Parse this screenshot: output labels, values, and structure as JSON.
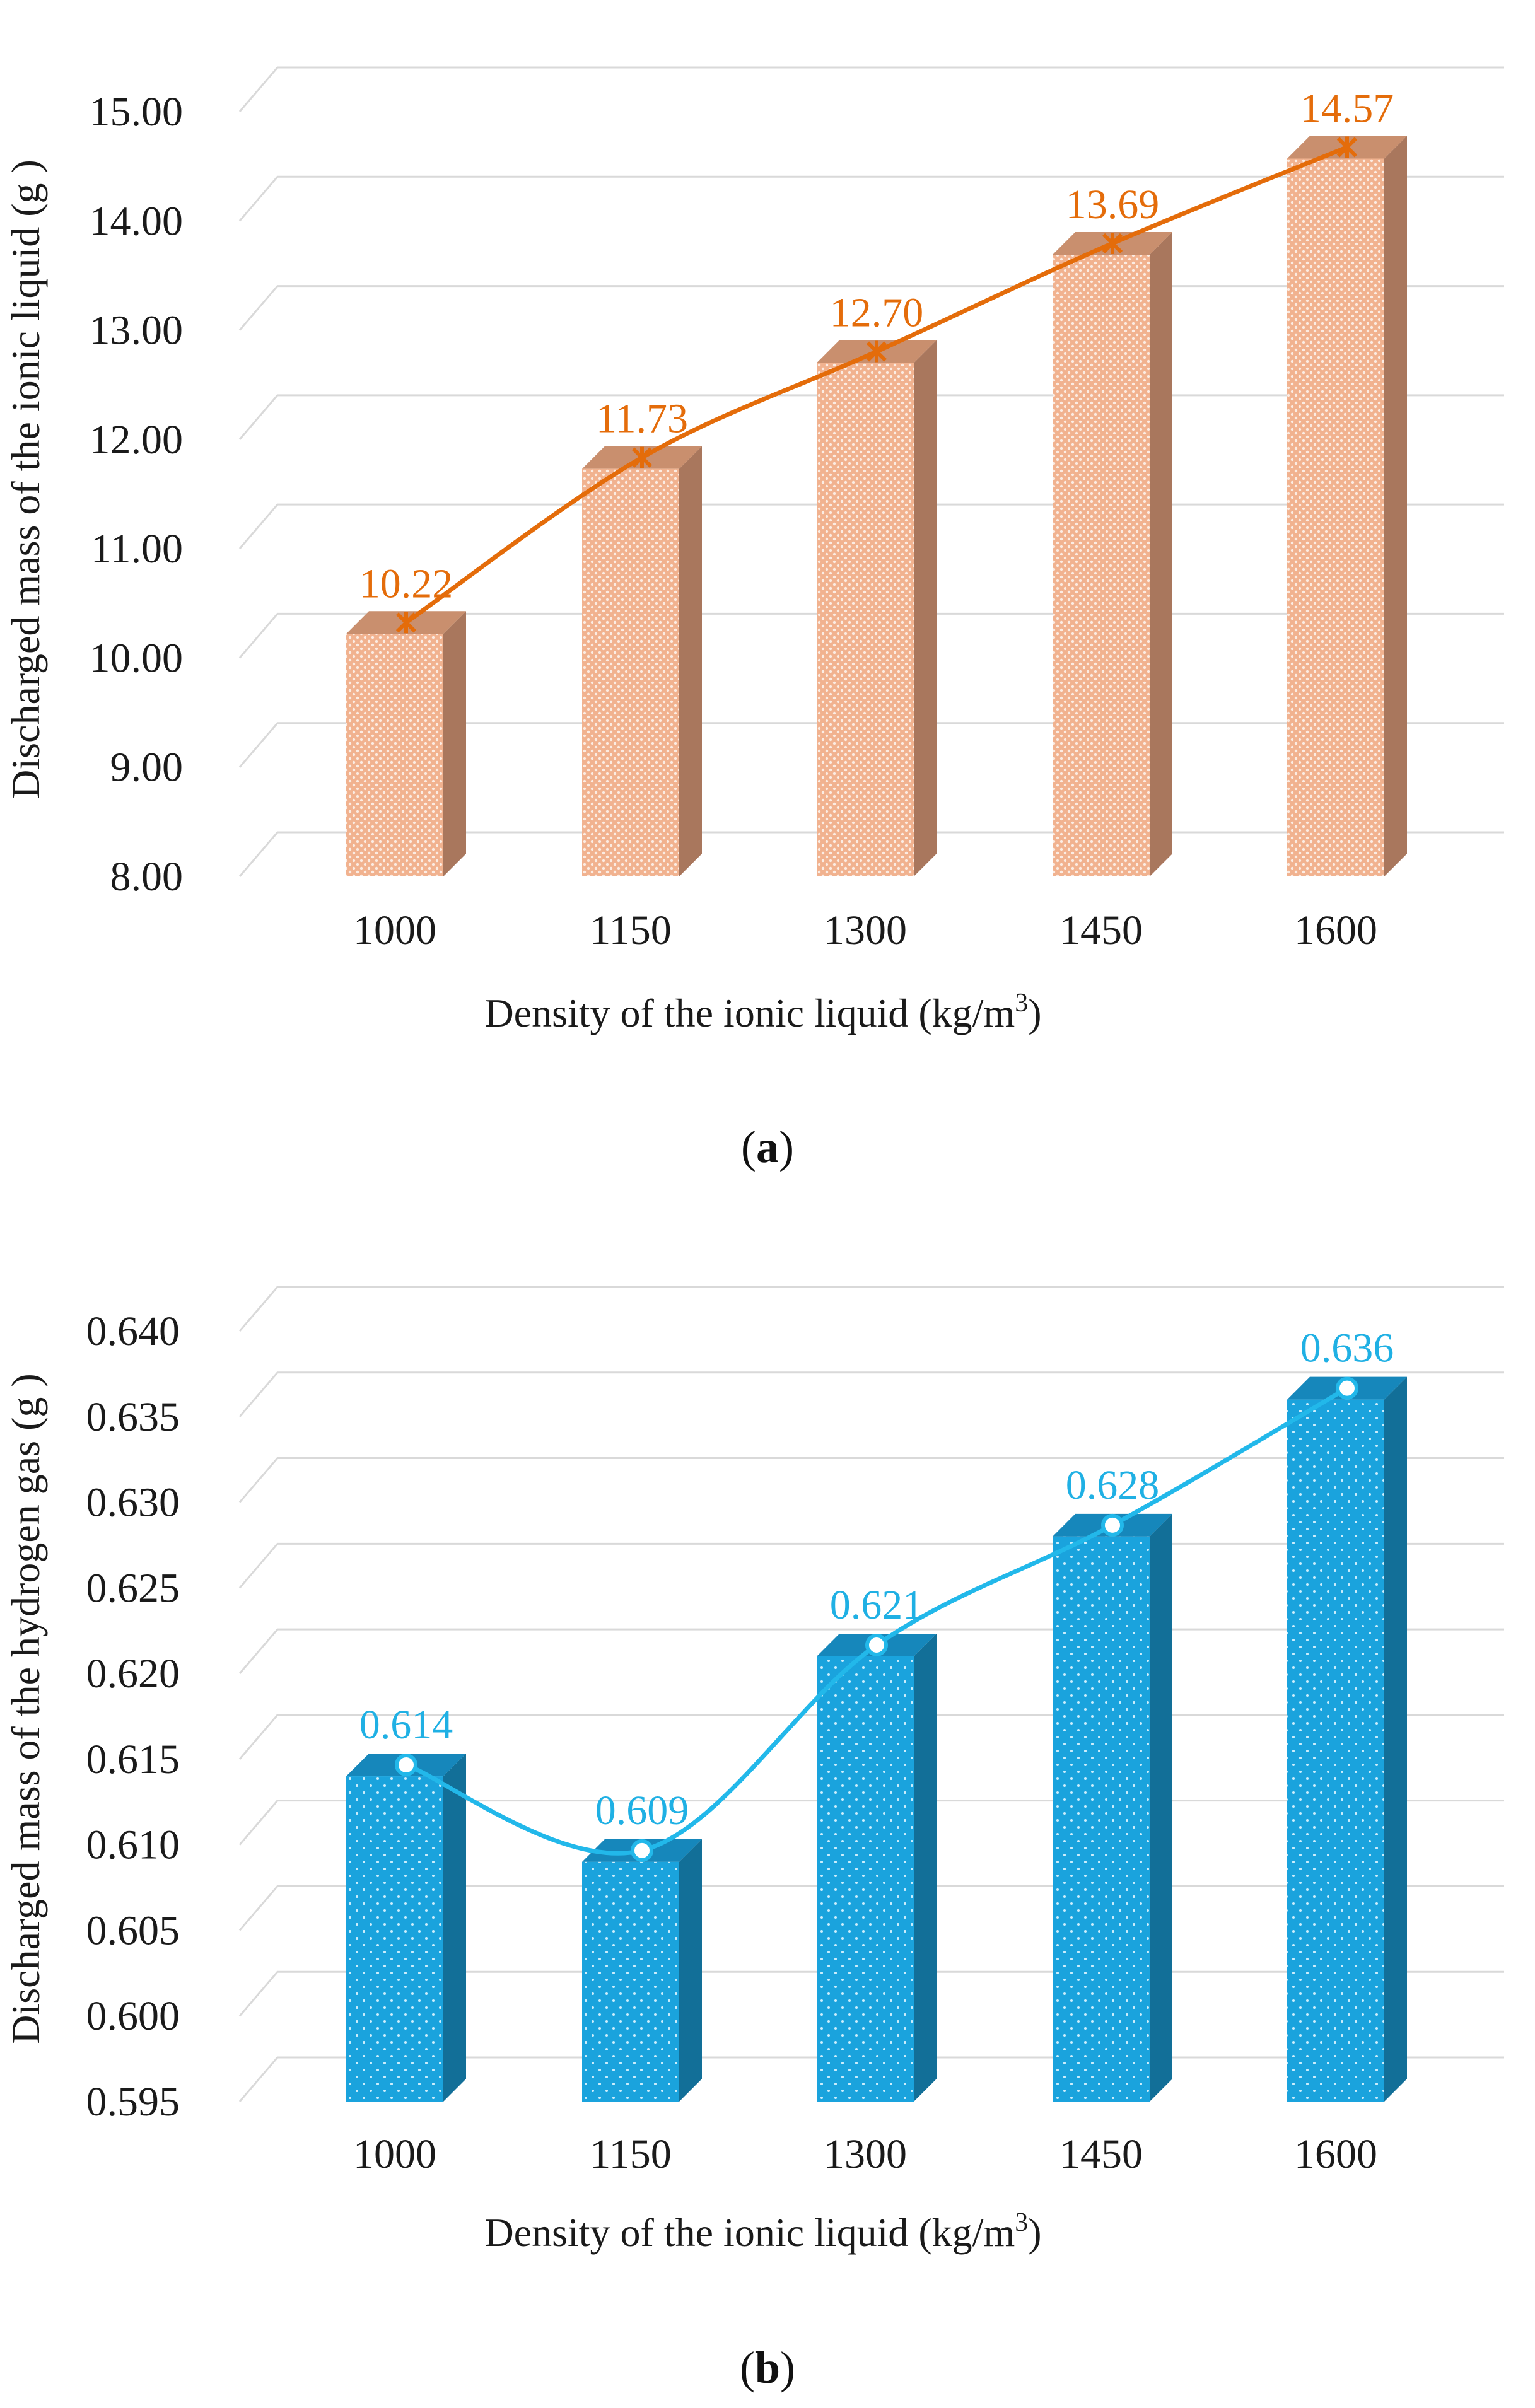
{
  "chart_data": [
    {
      "type": "bar",
      "panel": "(a)",
      "panel_letter": "a",
      "title": "",
      "xlabel": "Density of the ionic liquid (kg/m³)",
      "ylabel": "Discharged mass of the ionic liquid (g )",
      "categories": [
        "1000",
        "1150",
        "1300",
        "1450",
        "1600"
      ],
      "values": [
        10.22,
        11.73,
        12.7,
        13.69,
        14.57
      ],
      "data_labels": [
        "10.22",
        "11.73",
        "12.70",
        "13.69",
        "14.57"
      ],
      "ylim": [
        8.0,
        15.0
      ],
      "yticks": [
        8.0,
        9.0,
        10.0,
        11.0,
        12.0,
        13.0,
        14.0,
        15.0
      ],
      "ytick_labels": [
        "8.00",
        "9.00",
        "10.00",
        "11.00",
        "12.00",
        "13.00",
        "14.00",
        "15.00"
      ],
      "grid": true,
      "overlay_line": "smooth line with star markers through bar tops",
      "colors": {
        "bar_front": "#f1b28f",
        "bar_dot": "#ffffff",
        "bar_side": "#a9775d",
        "bar_top": "#c98f6e",
        "line": "#e46c0a",
        "label": "#e46c0a"
      }
    },
    {
      "type": "bar",
      "panel": "(b)",
      "panel_letter": "b",
      "title": "",
      "xlabel": "Density of the ionic liquid (kg/m³)",
      "ylabel": "Discharged mass of the hydrogen gas (g )",
      "categories": [
        "1000",
        "1150",
        "1300",
        "1450",
        "1600"
      ],
      "values": [
        0.614,
        0.609,
        0.621,
        0.628,
        0.636
      ],
      "data_labels": [
        "0.614",
        "0.609",
        "0.621",
        "0.628",
        "0.636"
      ],
      "ylim": [
        0.595,
        0.64
      ],
      "yticks": [
        0.595,
        0.6,
        0.605,
        0.61,
        0.615,
        0.62,
        0.625,
        0.63,
        0.635,
        0.64
      ],
      "ytick_labels": [
        "0.595",
        "0.600",
        "0.605",
        "0.610",
        "0.615",
        "0.620",
        "0.625",
        "0.630",
        "0.635",
        "0.640"
      ],
      "grid": true,
      "overlay_line": "smooth line with circle markers through bar tops",
      "colors": {
        "bar_front": "#1aa3dd",
        "bar_dot": "#cdeefc",
        "bar_side": "#126f98",
        "bar_top": "#1687bb",
        "line": "#22b8ea",
        "label": "#1fb0e4"
      }
    }
  ]
}
